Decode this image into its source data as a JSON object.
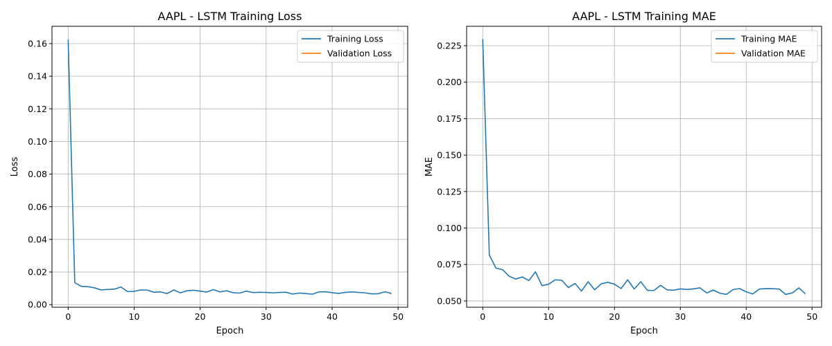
{
  "chart_data": [
    {
      "type": "line",
      "title": "AAPL - LSTM Training Loss",
      "xlabel": "Epoch",
      "ylabel": "Loss",
      "xlim": [
        -2.45,
        51.45
      ],
      "ylim": [
        -0.0016,
        0.1706
      ],
      "xticks": [
        0,
        10,
        20,
        30,
        40,
        50
      ],
      "yticks": [
        0.0,
        0.02,
        0.04,
        0.06,
        0.08,
        0.1,
        0.12,
        0.14,
        0.16
      ],
      "ytick_labels": [
        "0.00",
        "0.02",
        "0.04",
        "0.06",
        "0.08",
        "0.10",
        "0.12",
        "0.14",
        "0.16"
      ],
      "grid": true,
      "legend_position": "top-right",
      "series": [
        {
          "name": "Training Loss",
          "color": "#1f77b4",
          "x": [
            0,
            1,
            2,
            3,
            4,
            5,
            6,
            7,
            8,
            9,
            10,
            11,
            12,
            13,
            14,
            15,
            16,
            17,
            18,
            19,
            20,
            21,
            22,
            23,
            24,
            25,
            26,
            27,
            28,
            29,
            30,
            31,
            32,
            33,
            34,
            35,
            36,
            37,
            38,
            39,
            40,
            41,
            42,
            43,
            44,
            45,
            46,
            47,
            48,
            49
          ],
          "y": [
            0.1625,
            0.0135,
            0.0112,
            0.011,
            0.0103,
            0.009,
            0.0093,
            0.0095,
            0.0108,
            0.008,
            0.0082,
            0.009,
            0.0089,
            0.0076,
            0.0078,
            0.0068,
            0.009,
            0.0072,
            0.0085,
            0.0088,
            0.0083,
            0.0077,
            0.0092,
            0.0078,
            0.0085,
            0.0073,
            0.0071,
            0.0083,
            0.0074,
            0.0076,
            0.0075,
            0.0072,
            0.0075,
            0.0076,
            0.0065,
            0.0071,
            0.0068,
            0.0064,
            0.0078,
            0.0079,
            0.0073,
            0.0069,
            0.0075,
            0.0078,
            0.0075,
            0.0072,
            0.0066,
            0.0067,
            0.0079,
            0.0068
          ]
        },
        {
          "name": "Validation Loss",
          "color": "#ff7f0e",
          "x": [],
          "y": []
        }
      ]
    },
    {
      "type": "line",
      "title": "AAPL - LSTM Training MAE",
      "xlabel": "Epoch",
      "ylabel": "MAE",
      "xlim": [
        -2.45,
        51.45
      ],
      "ylim": [
        0.0457,
        0.2383
      ],
      "xticks": [
        0,
        10,
        20,
        30,
        40,
        50
      ],
      "yticks": [
        0.05,
        0.075,
        0.1,
        0.125,
        0.15,
        0.175,
        0.2,
        0.225
      ],
      "ytick_labels": [
        "0.050",
        "0.075",
        "0.100",
        "0.125",
        "0.150",
        "0.175",
        "0.200",
        "0.225"
      ],
      "grid": true,
      "legend_position": "top-right",
      "series": [
        {
          "name": "Training MAE",
          "color": "#1f77b4",
          "x": [
            0,
            1,
            2,
            3,
            4,
            5,
            6,
            7,
            8,
            9,
            10,
            11,
            12,
            13,
            14,
            15,
            16,
            17,
            18,
            19,
            20,
            21,
            22,
            23,
            24,
            25,
            26,
            27,
            28,
            29,
            30,
            31,
            32,
            33,
            34,
            35,
            36,
            37,
            38,
            39,
            40,
            41,
            42,
            43,
            44,
            45,
            46,
            47,
            48,
            49
          ],
          "y": [
            0.2295,
            0.0815,
            0.0725,
            0.0715,
            0.067,
            0.065,
            0.0665,
            0.064,
            0.07,
            0.0605,
            0.0615,
            0.0645,
            0.0642,
            0.0592,
            0.062,
            0.0568,
            0.0632,
            0.0577,
            0.0618,
            0.0628,
            0.0615,
            0.0585,
            0.0645,
            0.0582,
            0.0632,
            0.0573,
            0.0572,
            0.0607,
            0.0576,
            0.0574,
            0.0583,
            0.0579,
            0.0583,
            0.059,
            0.0555,
            0.0575,
            0.0553,
            0.0545,
            0.0578,
            0.0585,
            0.0563,
            0.0548,
            0.0582,
            0.0585,
            0.0584,
            0.0582,
            0.0545,
            0.0555,
            0.059,
            0.0548
          ]
        },
        {
          "name": "Validation MAE",
          "color": "#ff7f0e",
          "x": [],
          "y": []
        }
      ]
    }
  ]
}
